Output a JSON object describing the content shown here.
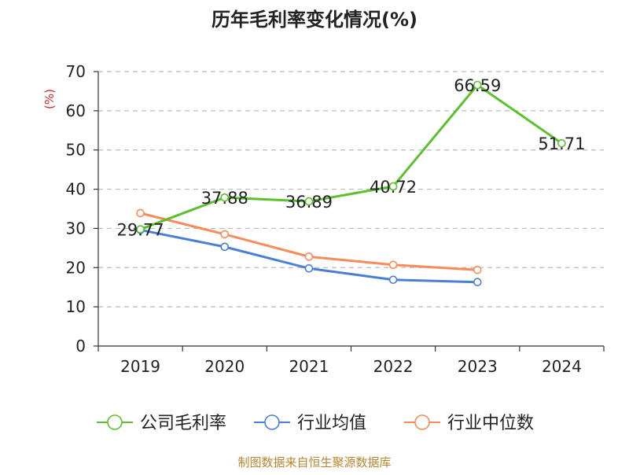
{
  "source": "制图数据来自恒生聚源数据库",
  "colors": {
    "company": "#5cc02c",
    "industry_avg": "#4a7fd6",
    "industry_median": "#f58c5a",
    "axis": "#333333",
    "grid": "#bbbbbb",
    "unit_label": "#d62728",
    "source": "#b8862f",
    "text": "#222222"
  },
  "chart_data": {
    "type": "line",
    "title": "历年毛利率变化情况(%)",
    "ylabel": "(%)",
    "xlabel": "",
    "categories": [
      "2019",
      "2020",
      "2021",
      "2022",
      "2023",
      "2024"
    ],
    "ylim": [
      0,
      70
    ],
    "yticks": [
      0,
      10,
      20,
      30,
      40,
      50,
      60,
      70
    ],
    "grid": true,
    "legend_position": "bottom",
    "series": [
      {
        "name": "公司毛利率",
        "color_key": "company",
        "values": [
          29.77,
          37.88,
          36.89,
          40.72,
          66.59,
          51.71
        ],
        "labels": [
          "29.77",
          "37.88",
          "36.89",
          "40.72",
          "66.59",
          "51.71"
        ]
      },
      {
        "name": "行业均值",
        "color_key": "industry_avg",
        "values": [
          29.6,
          25.3,
          19.8,
          16.9,
          16.3,
          null
        ]
      },
      {
        "name": "行业中位数",
        "color_key": "industry_median",
        "values": [
          33.9,
          28.5,
          22.8,
          20.7,
          19.4,
          null
        ]
      }
    ]
  }
}
